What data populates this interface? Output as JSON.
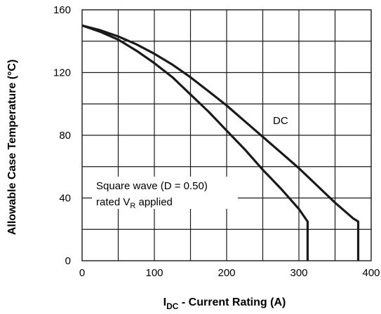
{
  "chart_data": {
    "type": "line",
    "xlabel_main": "I",
    "xlabel_sub": "DC",
    "xlabel_rest": " - Current Rating (A)",
    "ylabel": "Allowable Case Temperature (°C)",
    "xlim": [
      0,
      400
    ],
    "ylim": [
      0,
      160
    ],
    "x_ticks": [
      0,
      100,
      200,
      300,
      400
    ],
    "y_ticks": [
      0,
      40,
      80,
      120,
      160
    ],
    "grid": true,
    "series": [
      {
        "name": "DC",
        "x": [
          0,
          25,
          50,
          75,
          100,
          125,
          150,
          175,
          200,
          225,
          250,
          275,
          300,
          325,
          350,
          375,
          382,
          382
        ],
        "y": [
          150,
          147,
          143,
          138,
          132,
          125,
          117,
          108,
          99,
          89,
          79,
          69,
          59,
          48,
          37,
          27,
          25,
          0
        ]
      },
      {
        "name": "Square wave (D = 0.50)",
        "x": [
          0,
          25,
          50,
          75,
          100,
          125,
          150,
          175,
          200,
          225,
          250,
          275,
          300,
          312,
          312
        ],
        "y": [
          150,
          146,
          141,
          134,
          126,
          117,
          106,
          95,
          83,
          71,
          58,
          46,
          33,
          25,
          0
        ]
      }
    ],
    "annotations": {
      "dc_label": "DC",
      "square_line1": "Square wave (D = 0.50)",
      "square_line2_main": "rated V",
      "square_line2_sub": "R",
      "square_line2_rest": " applied"
    }
  }
}
